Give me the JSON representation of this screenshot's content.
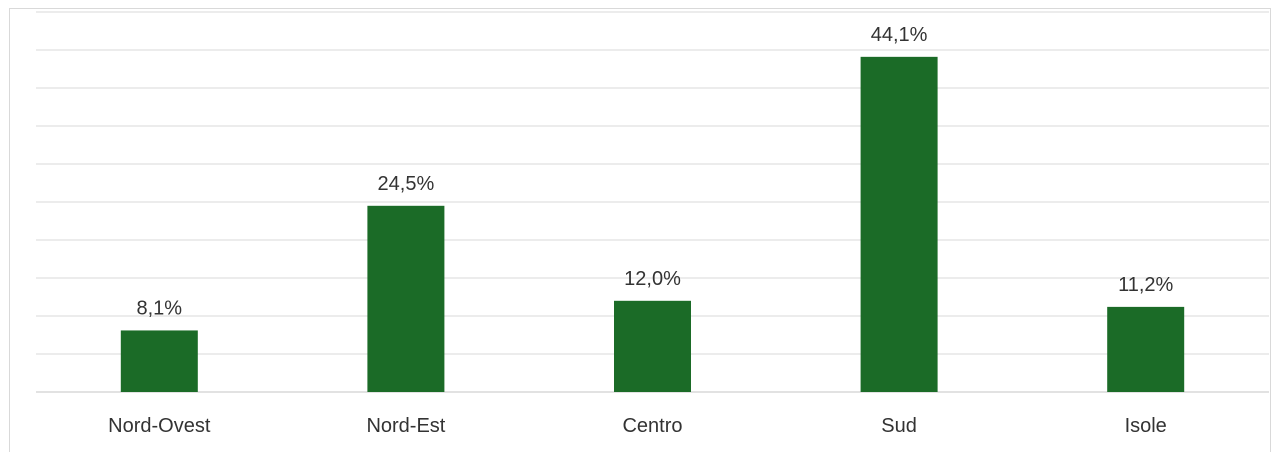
{
  "chart_data": {
    "type": "bar",
    "title": "",
    "xlabel": "",
    "ylabel": "",
    "categories": [
      "Nord-Ovest",
      "Nord-Est",
      "Centro",
      "Sud",
      "Isole"
    ],
    "values": [
      8.1,
      24.5,
      12.0,
      44.1,
      11.2
    ],
    "value_labels": [
      "8,1%",
      "24,5%",
      "12,0%",
      "44,1%",
      "11,2%"
    ],
    "ylim": [
      0,
      50
    ],
    "grid": true,
    "legend": "none",
    "colors": {
      "bar": "#1b6b27",
      "grid": "#d9d9d9",
      "title": "#d0021b"
    }
  }
}
